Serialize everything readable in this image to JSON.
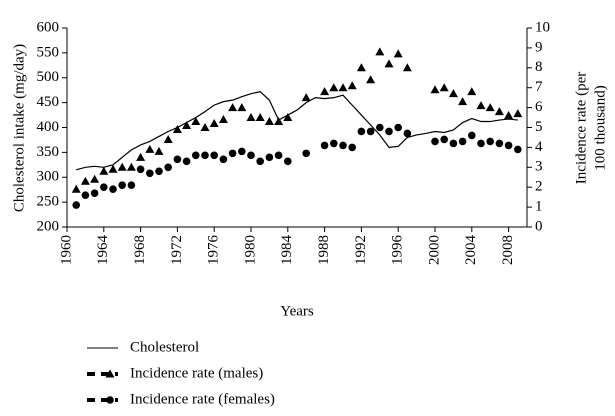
{
  "chart_data": {
    "type": "line",
    "x_label": "Years",
    "y_label": "Cholesterol intake (mg/day)",
    "y2_label": [
      "Incidence rate (per",
      "100 thousand)"
    ],
    "x": [
      1961,
      1962,
      1963,
      1964,
      1965,
      1966,
      1967,
      1968,
      1969,
      1970,
      1971,
      1972,
      1973,
      1974,
      1975,
      1976,
      1977,
      1978,
      1979,
      1980,
      1981,
      1982,
      1983,
      1984,
      1985,
      1986,
      1987,
      1988,
      1989,
      1990,
      1991,
      1992,
      1993,
      1994,
      1995,
      1996,
      1997,
      1998,
      1999,
      2000,
      2001,
      2002,
      2003,
      2004,
      2005,
      2006,
      2007,
      2008,
      2009
    ],
    "xlim": [
      1960,
      2010
    ],
    "xticks": [
      1960,
      1964,
      1968,
      1972,
      1976,
      1980,
      1984,
      1988,
      1992,
      1996,
      2000,
      2004,
      2008
    ],
    "ylim": [
      200,
      600
    ],
    "yticks": [
      200,
      250,
      300,
      350,
      400,
      450,
      500,
      550,
      600
    ],
    "y2lim": [
      0,
      10
    ],
    "y2ticks": [
      0,
      1,
      2,
      3,
      4,
      5,
      6,
      7,
      8,
      9,
      10
    ],
    "series": [
      {
        "name": "Cholesterol",
        "color": "#000000",
        "marker": "none",
        "values": [
          315,
          320,
          322,
          320,
          325,
          340,
          355,
          365,
          372,
          382,
          392,
          400,
          410,
          420,
          432,
          445,
          452,
          455,
          462,
          468,
          472,
          455,
          415,
          425,
          435,
          450,
          460,
          458,
          460,
          465,
          445,
          425,
          405,
          385,
          360,
          362,
          380,
          385,
          388,
          392,
          390,
          395,
          410,
          418,
          412,
          412,
          415,
          417,
          415
        ]
      },
      {
        "name": "Incidence rate (males)",
        "color": "#000000",
        "marker": "triangle",
        "axis": "y2",
        "values": [
          1.9,
          2.3,
          2.4,
          2.8,
          2.9,
          3.0,
          3.0,
          3.5,
          3.9,
          3.8,
          4.4,
          4.9,
          5.1,
          5.3,
          5.0,
          5.2,
          5.4,
          6.0,
          6.0,
          5.5,
          5.5,
          5.3,
          5.3,
          5.5,
          null,
          6.5,
          null,
          6.8,
          7.0,
          7.0,
          7.1,
          8.0,
          7.4,
          8.8,
          8.2,
          8.7,
          8.0,
          null,
          null,
          6.9,
          7.0,
          6.7,
          6.3,
          6.8,
          6.1,
          6.0,
          5.8,
          5.6,
          5.7
        ]
      },
      {
        "name": "Incidence rate (females)",
        "color": "#000000",
        "marker": "circle",
        "axis": "y2",
        "values": [
          1.1,
          1.6,
          1.7,
          2.0,
          1.9,
          2.1,
          2.1,
          2.9,
          2.7,
          2.8,
          3.0,
          3.4,
          3.3,
          3.6,
          3.6,
          3.6,
          3.4,
          3.7,
          3.8,
          3.6,
          3.3,
          3.5,
          3.6,
          3.3,
          null,
          3.7,
          null,
          4.1,
          4.2,
          4.1,
          4.0,
          4.8,
          4.8,
          5.0,
          4.8,
          5.0,
          4.7,
          null,
          null,
          4.3,
          4.4,
          4.2,
          4.3,
          4.6,
          4.2,
          4.3,
          4.2,
          4.1,
          3.9
        ]
      }
    ]
  }
}
